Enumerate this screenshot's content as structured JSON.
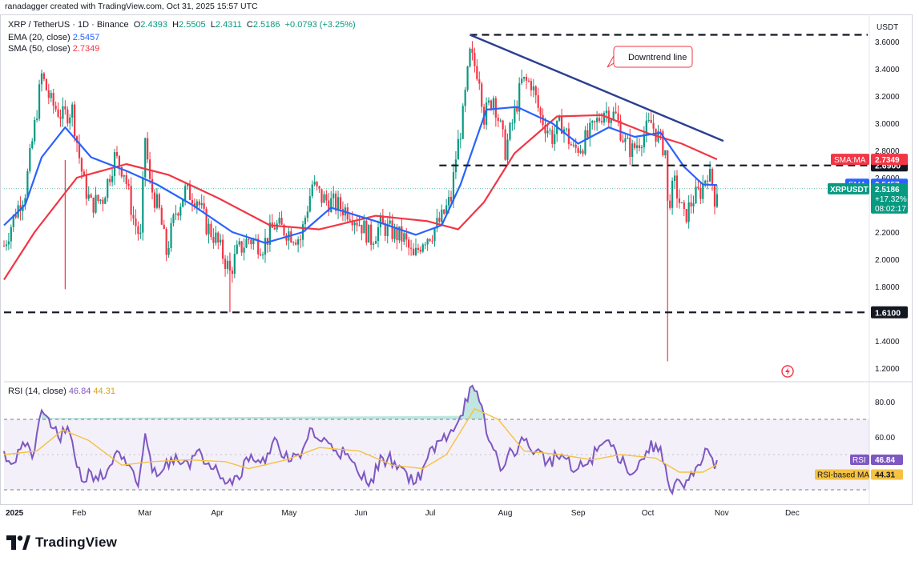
{
  "header": {
    "attribution": "ranadagger created with TradingView.com, Oct 31, 2025 15:57 UTC",
    "symbol": "XRP / TetherUS · 1D · Binance",
    "open_label": "O",
    "open": "2.4393",
    "high_label": "H",
    "high": "2.5505",
    "low_label": "L",
    "low": "2.4311",
    "close_label": "C",
    "close": "2.5186",
    "change": "+0.0793 (+3.25%)",
    "ema_label": "EMA (20, close)",
    "ema_value": "2.5457",
    "sma_label": "SMA (50, close)",
    "sma_value": "2.7349",
    "rsi_label": "RSI (14, close)",
    "rsi_value": "46.84",
    "rsi_ma_value": "44.31"
  },
  "colors": {
    "up": "#089981",
    "down": "#f23645",
    "ema": "#2962ff",
    "sma": "#f23645",
    "rsi": "#7e57c2",
    "rsi_ma": "#f5c242",
    "trendline": "#2a3f8f",
    "level": "#131722"
  },
  "brand": {
    "logo_icon": "tradingview-logo-icon",
    "name": "TradingView"
  },
  "chart_data": [
    {
      "type": "candlestick",
      "title": "XRP / TetherUS · 1D · Binance",
      "currency": "USDT",
      "ylim": [
        1.15,
        3.68
      ],
      "y_ticks": [
        "3.6000",
        "3.4000",
        "3.2000",
        "3.0000",
        "2.8000",
        "2.6000",
        "2.4000",
        "2.2000",
        "2.0000",
        "1.8000",
        "1.6000",
        "1.4000",
        "1.2000"
      ],
      "x_ticks": [
        "2025",
        "Feb",
        "Mar",
        "Apr",
        "May",
        "Jun",
        "Jul",
        "Aug",
        "Sep",
        "Oct",
        "Nov",
        "Dec"
      ],
      "price_path": [
        [
          "2025-01-01",
          2.1
        ],
        [
          "2025-01-06",
          2.35
        ],
        [
          "2025-01-10",
          2.5
        ],
        [
          "2025-01-15",
          3.1
        ],
        [
          "2025-01-17",
          3.35
        ],
        [
          "2025-01-21",
          3.15
        ],
        [
          "2025-01-26",
          3.05
        ],
        [
          "2025-01-30",
          3.1
        ],
        [
          "2025-02-02",
          2.75
        ],
        [
          "2025-02-04",
          2.55
        ],
        [
          "2025-02-07",
          2.4
        ],
        [
          "2025-02-12",
          2.45
        ],
        [
          "2025-02-17",
          2.75
        ],
        [
          "2025-02-21",
          2.65
        ],
        [
          "2025-02-25",
          2.3
        ],
        [
          "2025-02-28",
          2.15
        ],
        [
          "2025-03-02",
          2.9
        ],
        [
          "2025-03-04",
          2.55
        ],
        [
          "2025-03-08",
          2.35
        ],
        [
          "2025-03-11",
          2.05
        ],
        [
          "2025-03-15",
          2.35
        ],
        [
          "2025-03-19",
          2.5
        ],
        [
          "2025-03-24",
          2.45
        ],
        [
          "2025-03-28",
          2.25
        ],
        [
          "2025-04-01",
          2.15
        ],
        [
          "2025-04-06",
          1.95
        ],
        [
          "2025-04-07",
          1.9
        ],
        [
          "2025-04-10",
          2.05
        ],
        [
          "2025-04-15",
          2.15
        ],
        [
          "2025-04-21",
          2.1
        ],
        [
          "2025-04-26",
          2.25
        ],
        [
          "2025-05-02",
          2.2
        ],
        [
          "2025-05-07",
          2.15
        ],
        [
          "2025-05-12",
          2.55
        ],
        [
          "2025-05-16",
          2.45
        ],
        [
          "2025-05-22",
          2.4
        ],
        [
          "2025-05-28",
          2.35
        ],
        [
          "2025-06-02",
          2.25
        ],
        [
          "2025-06-06",
          2.15
        ],
        [
          "2025-06-10",
          2.25
        ],
        [
          "2025-06-15",
          2.2
        ],
        [
          "2025-06-20",
          2.15
        ],
        [
          "2025-06-24",
          2.0
        ],
        [
          "2025-06-28",
          2.15
        ],
        [
          "2025-07-02",
          2.2
        ],
        [
          "2025-07-06",
          2.3
        ],
        [
          "2025-07-10",
          2.45
        ],
        [
          "2025-07-12",
          2.75
        ],
        [
          "2025-07-15",
          3.05
        ],
        [
          "2025-07-18",
          3.5
        ],
        [
          "2025-07-22",
          3.35
        ],
        [
          "2025-07-24",
          3.05
        ],
        [
          "2025-07-28",
          3.2
        ],
        [
          "2025-08-02",
          2.8
        ],
        [
          "2025-08-05",
          3.0
        ],
        [
          "2025-08-09",
          3.3
        ],
        [
          "2025-08-13",
          3.3
        ],
        [
          "2025-08-17",
          3.05
        ],
        [
          "2025-08-22",
          2.9
        ],
        [
          "2025-08-26",
          3.0
        ],
        [
          "2025-08-31",
          2.8
        ],
        [
          "2025-09-04",
          2.85
        ],
        [
          "2025-09-08",
          2.95
        ],
        [
          "2025-09-13",
          3.1
        ],
        [
          "2025-09-18",
          3.05
        ],
        [
          "2025-09-22",
          2.85
        ],
        [
          "2025-09-25",
          2.8
        ],
        [
          "2025-09-29",
          2.9
        ],
        [
          "2025-10-03",
          3.0
        ],
        [
          "2025-10-06",
          2.9
        ],
        [
          "2025-10-09",
          2.8
        ],
        [
          "2025-10-10",
          2.4
        ],
        [
          "2025-10-13",
          2.55
        ],
        [
          "2025-10-17",
          2.3
        ],
        [
          "2025-10-21",
          2.45
        ],
        [
          "2025-10-24",
          2.5
        ],
        [
          "2025-10-27",
          2.65
        ],
        [
          "2025-10-29",
          2.55
        ],
        [
          "2025-10-30",
          2.45
        ],
        [
          "2025-10-31",
          2.52
        ]
      ],
      "ema20_path": [
        [
          "2025-01-01",
          2.25
        ],
        [
          "2025-01-10",
          2.4
        ],
        [
          "2025-01-17",
          2.75
        ],
        [
          "2025-01-27",
          2.97
        ],
        [
          "2025-02-07",
          2.75
        ],
        [
          "2025-02-22",
          2.65
        ],
        [
          "2025-03-07",
          2.55
        ],
        [
          "2025-03-22",
          2.4
        ],
        [
          "2025-04-08",
          2.2
        ],
        [
          "2025-04-22",
          2.12
        ],
        [
          "2025-05-08",
          2.2
        ],
        [
          "2025-05-20",
          2.38
        ],
        [
          "2025-06-08",
          2.28
        ],
        [
          "2025-06-25",
          2.18
        ],
        [
          "2025-07-06",
          2.25
        ],
        [
          "2025-07-14",
          2.55
        ],
        [
          "2025-07-25",
          3.1
        ],
        [
          "2025-08-07",
          3.12
        ],
        [
          "2025-08-22",
          3.0
        ],
        [
          "2025-09-02",
          2.85
        ],
        [
          "2025-09-15",
          2.97
        ],
        [
          "2025-09-26",
          2.9
        ],
        [
          "2025-10-07",
          2.93
        ],
        [
          "2025-10-17",
          2.68
        ],
        [
          "2025-10-25",
          2.55
        ],
        [
          "2025-10-31",
          2.5457
        ]
      ],
      "sma50_path": [
        [
          "2025-01-01",
          1.85
        ],
        [
          "2025-01-14",
          2.2
        ],
        [
          "2025-02-01",
          2.6
        ],
        [
          "2025-02-22",
          2.7
        ],
        [
          "2025-03-12",
          2.62
        ],
        [
          "2025-04-02",
          2.45
        ],
        [
          "2025-04-24",
          2.25
        ],
        [
          "2025-05-15",
          2.22
        ],
        [
          "2025-06-08",
          2.32
        ],
        [
          "2025-06-30",
          2.28
        ],
        [
          "2025-07-13",
          2.22
        ],
        [
          "2025-07-24",
          2.42
        ],
        [
          "2025-08-06",
          2.78
        ],
        [
          "2025-08-24",
          3.05
        ],
        [
          "2025-09-12",
          3.06
        ],
        [
          "2025-10-01",
          2.93
        ],
        [
          "2025-10-16",
          2.85
        ],
        [
          "2025-10-31",
          2.7349
        ]
      ],
      "horizontal_levels": [
        {
          "label": "3.6500",
          "value": 3.65,
          "show_label": false
        },
        {
          "label": "2.6900",
          "value": 2.69,
          "show_label": true
        },
        {
          "label": "1.6100",
          "value": 1.61,
          "show_label": true
        }
      ],
      "trendline": {
        "start": [
          "2025-07-18",
          3.65
        ],
        "end": [
          "2025-10-31",
          2.87
        ],
        "label": "Downtrend line"
      },
      "wicks": [
        [
          "2025-01-27",
          2.73,
          1.78
        ],
        [
          "2025-04-07",
          2.05,
          1.61
        ],
        [
          "2025-10-10",
          2.8,
          1.25
        ]
      ],
      "last_price_label": "XRPUSDT",
      "last_price": "2.5186",
      "last_change": "+17.32%",
      "countdown": "08:02:17",
      "series": [
        {
          "name": "EMA",
          "value": "2.5457"
        },
        {
          "name": "SMA:MA",
          "value": "2.7349"
        }
      ]
    },
    {
      "type": "line",
      "title": "RSI (14, close)",
      "ylim": [
        25,
        95
      ],
      "y_ticks": [
        "80.00",
        "60.00"
      ],
      "band": [
        30,
        70
      ],
      "rsi_path": [
        [
          "2025-01-01",
          52
        ],
        [
          "2025-01-05",
          45
        ],
        [
          "2025-01-09",
          57
        ],
        [
          "2025-01-13",
          48
        ],
        [
          "2025-01-16",
          70
        ],
        [
          "2025-01-19",
          72
        ],
        [
          "2025-01-24",
          60
        ],
        [
          "2025-01-29",
          62
        ],
        [
          "2025-02-03",
          35
        ],
        [
          "2025-02-07",
          40
        ],
        [
          "2025-02-12",
          36
        ],
        [
          "2025-02-17",
          50
        ],
        [
          "2025-02-22",
          44
        ],
        [
          "2025-02-27",
          32
        ],
        [
          "2025-03-02",
          62
        ],
        [
          "2025-03-05",
          40
        ],
        [
          "2025-03-10",
          42
        ],
        [
          "2025-03-15",
          50
        ],
        [
          "2025-03-20",
          46
        ],
        [
          "2025-03-26",
          50
        ],
        [
          "2025-04-01",
          44
        ],
        [
          "2025-04-06",
          34
        ],
        [
          "2025-04-10",
          38
        ],
        [
          "2025-04-16",
          50
        ],
        [
          "2025-04-22",
          45
        ],
        [
          "2025-04-27",
          58
        ],
        [
          "2025-05-02",
          46
        ],
        [
          "2025-05-07",
          48
        ],
        [
          "2025-05-11",
          65
        ],
        [
          "2025-05-15",
          58
        ],
        [
          "2025-05-20",
          56
        ],
        [
          "2025-05-26",
          50
        ],
        [
          "2025-06-01",
          38
        ],
        [
          "2025-06-06",
          36
        ],
        [
          "2025-06-11",
          48
        ],
        [
          "2025-06-16",
          46
        ],
        [
          "2025-06-21",
          40
        ],
        [
          "2025-06-25",
          34
        ],
        [
          "2025-06-30",
          48
        ],
        [
          "2025-07-06",
          58
        ],
        [
          "2025-07-10",
          64
        ],
        [
          "2025-07-14",
          72
        ],
        [
          "2025-07-18",
          88
        ],
        [
          "2025-07-22",
          80
        ],
        [
          "2025-07-26",
          58
        ],
        [
          "2025-08-01",
          42
        ],
        [
          "2025-08-05",
          52
        ],
        [
          "2025-08-10",
          58
        ],
        [
          "2025-08-15",
          52
        ],
        [
          "2025-08-20",
          46
        ],
        [
          "2025-08-26",
          50
        ],
        [
          "2025-08-31",
          40
        ],
        [
          "2025-09-05",
          44
        ],
        [
          "2025-09-10",
          52
        ],
        [
          "2025-09-14",
          58
        ],
        [
          "2025-09-18",
          52
        ],
        [
          "2025-09-22",
          44
        ],
        [
          "2025-09-26",
          40
        ],
        [
          "2025-10-01",
          52
        ],
        [
          "2025-10-05",
          56
        ],
        [
          "2025-10-09",
          44
        ],
        [
          "2025-10-11",
          30
        ],
        [
          "2025-10-14",
          36
        ],
        [
          "2025-10-17",
          31
        ],
        [
          "2025-10-21",
          38
        ],
        [
          "2025-10-24",
          44
        ],
        [
          "2025-10-27",
          53
        ],
        [
          "2025-10-29",
          48
        ],
        [
          "2025-10-30",
          42
        ],
        [
          "2025-10-31",
          46.84
        ]
      ],
      "rsi_ma_path": [
        [
          "2025-01-01",
          50
        ],
        [
          "2025-01-15",
          52
        ],
        [
          "2025-01-26",
          64
        ],
        [
          "2025-02-06",
          58
        ],
        [
          "2025-02-20",
          44
        ],
        [
          "2025-03-05",
          46
        ],
        [
          "2025-03-20",
          47
        ],
        [
          "2025-04-05",
          46
        ],
        [
          "2025-04-15",
          42
        ],
        [
          "2025-05-01",
          47
        ],
        [
          "2025-05-15",
          54
        ],
        [
          "2025-06-01",
          52
        ],
        [
          "2025-06-15",
          44
        ],
        [
          "2025-06-28",
          42
        ],
        [
          "2025-07-08",
          50
        ],
        [
          "2025-07-20",
          76
        ],
        [
          "2025-07-30",
          70
        ],
        [
          "2025-08-10",
          52
        ],
        [
          "2025-08-25",
          50
        ],
        [
          "2025-09-08",
          47
        ],
        [
          "2025-09-20",
          50
        ],
        [
          "2025-10-05",
          48
        ],
        [
          "2025-10-15",
          40
        ],
        [
          "2025-10-25",
          40
        ],
        [
          "2025-10-31",
          44.31
        ]
      ],
      "series": [
        {
          "name": "RSI",
          "value": "46.84"
        },
        {
          "name": "RSI-based MA",
          "value": "44.31"
        }
      ]
    }
  ]
}
